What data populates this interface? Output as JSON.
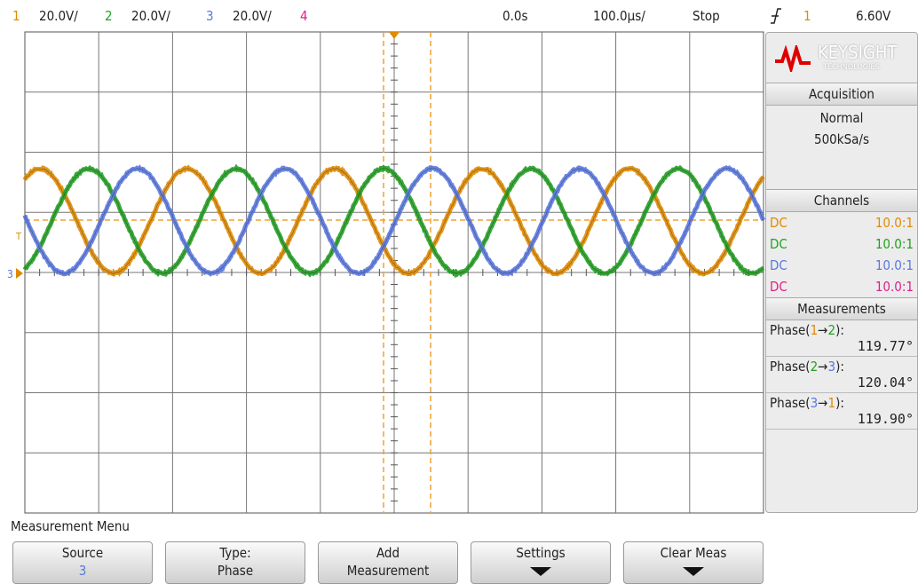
{
  "channel_bar": [
    {
      "number": "1",
      "scale": "20.0V/"
    },
    {
      "number": "2",
      "scale": "20.0V/"
    },
    {
      "number": "3",
      "scale": "20.0V/"
    },
    {
      "number": "4"
    }
  ],
  "time_delay": "0.0s",
  "time_scale": "100.0µs/",
  "run_state": "Stop",
  "trigger": {
    "source": "1",
    "level": "6.60V"
  },
  "markers": {
    "trigger": "T",
    "ground": "3"
  },
  "panel": {
    "logo": {
      "name": "KEYSIGHT",
      "sub": "TECHNOLOGIES"
    },
    "acquisition": {
      "title": "Acquisition",
      "mode": "Normal",
      "rate": "500kSa/s"
    },
    "channels": {
      "title": "Channels",
      "rows": [
        {
          "coupling": "DC",
          "probe": "10.0:1"
        },
        {
          "coupling": "DC",
          "probe": "10.0:1"
        },
        {
          "coupling": "DC",
          "probe": "10.0:1"
        },
        {
          "coupling": "DC",
          "probe": "10.0:1"
        }
      ]
    },
    "measurements": {
      "title": "Measurements",
      "items": [
        {
          "prefix": "Phase(",
          "from": "1",
          "arrow": "→",
          "to": "2",
          "suffix": "):",
          "value": "119.77°"
        },
        {
          "prefix": "Phase(",
          "from": "2",
          "arrow": "→",
          "to": "3",
          "suffix": "):",
          "value": "120.04°"
        },
        {
          "prefix": "Phase(",
          "from": "3",
          "arrow": "→",
          "to": "1",
          "suffix": "):",
          "value": "119.90°"
        }
      ]
    }
  },
  "menu": {
    "title": "Measurement Menu",
    "softkeys": [
      {
        "line1": "Source",
        "line2": "3"
      },
      {
        "line1": "Type:",
        "line2": "Phase"
      },
      {
        "line1": "Add",
        "line2": "Measurement"
      },
      {
        "line1": "Settings"
      },
      {
        "line1": "Clear Meas"
      }
    ]
  }
}
